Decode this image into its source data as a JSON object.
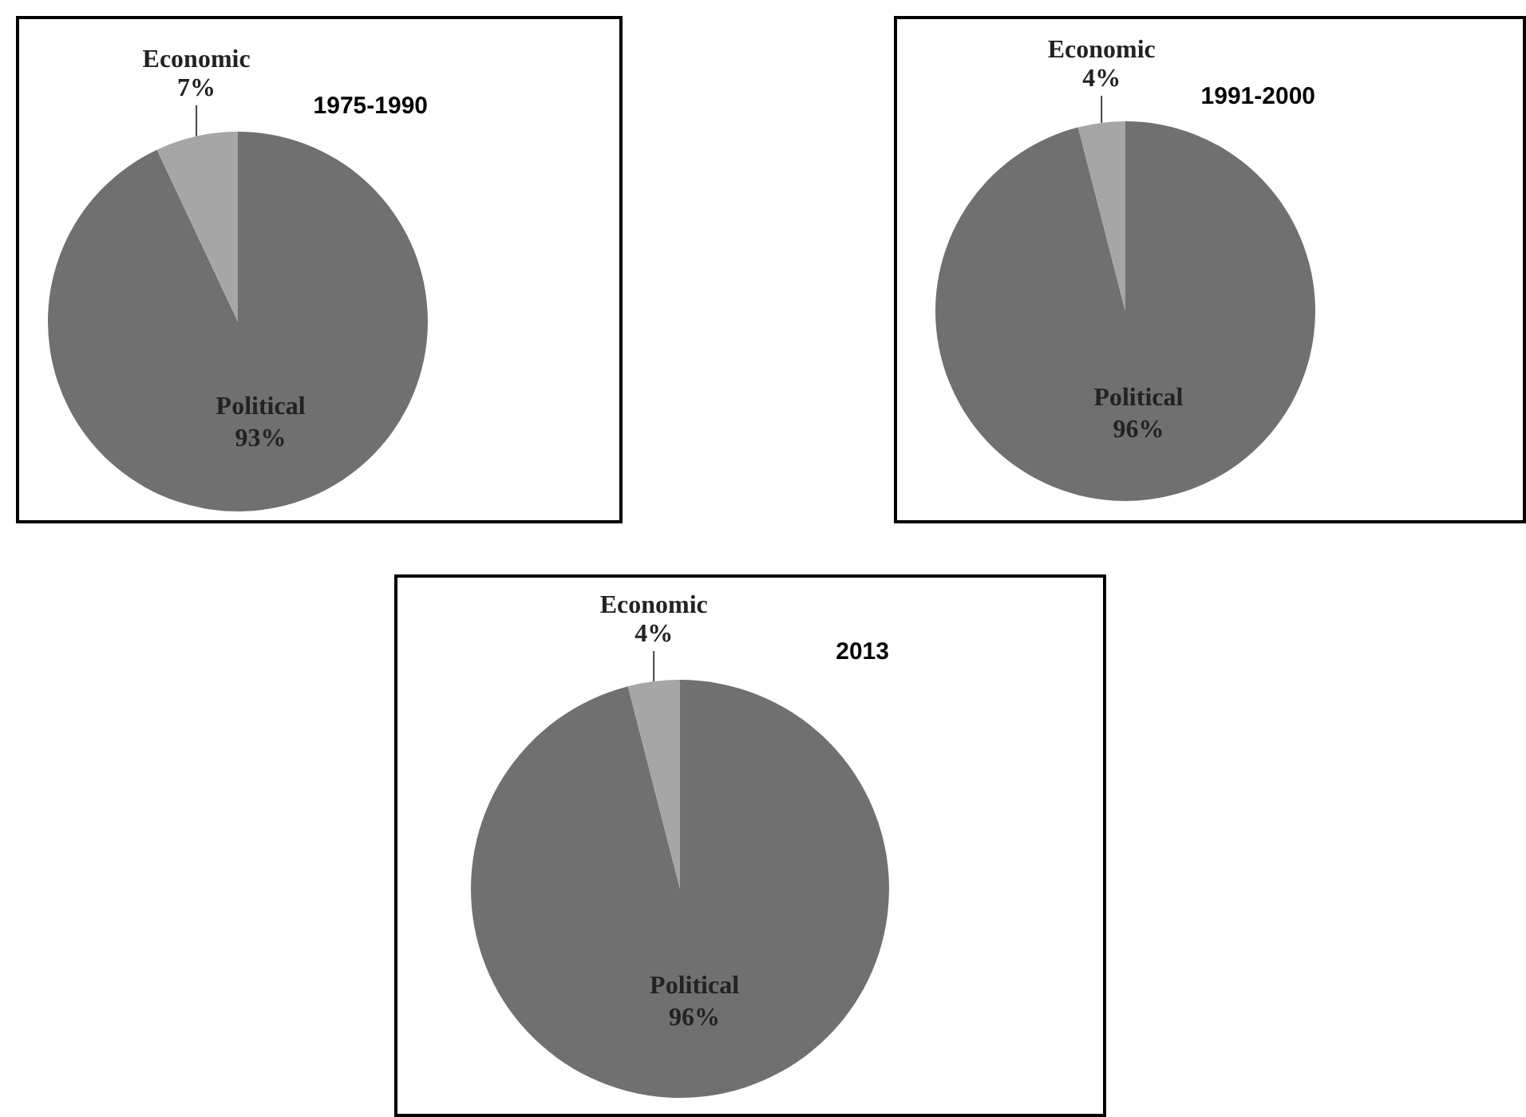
{
  "chart_data": [
    {
      "type": "pie",
      "title": "1975-1990",
      "categories": [
        "Political",
        "Economic"
      ],
      "values": [
        93,
        7
      ],
      "colors": [
        "#707070",
        "#a6a6a6"
      ],
      "value_labels": [
        "93%",
        "7%"
      ]
    },
    {
      "type": "pie",
      "title": "1991-2000",
      "categories": [
        "Political",
        "Economic"
      ],
      "values": [
        96,
        4
      ],
      "colors": [
        "#707070",
        "#a6a6a6"
      ],
      "value_labels": [
        "96%",
        "4%"
      ]
    },
    {
      "type": "pie",
      "title": "2013",
      "categories": [
        "Political",
        "Economic"
      ],
      "values": [
        96,
        4
      ],
      "colors": [
        "#707070",
        "#a6a6a6"
      ],
      "value_labels": [
        "96%",
        "4%"
      ]
    }
  ]
}
